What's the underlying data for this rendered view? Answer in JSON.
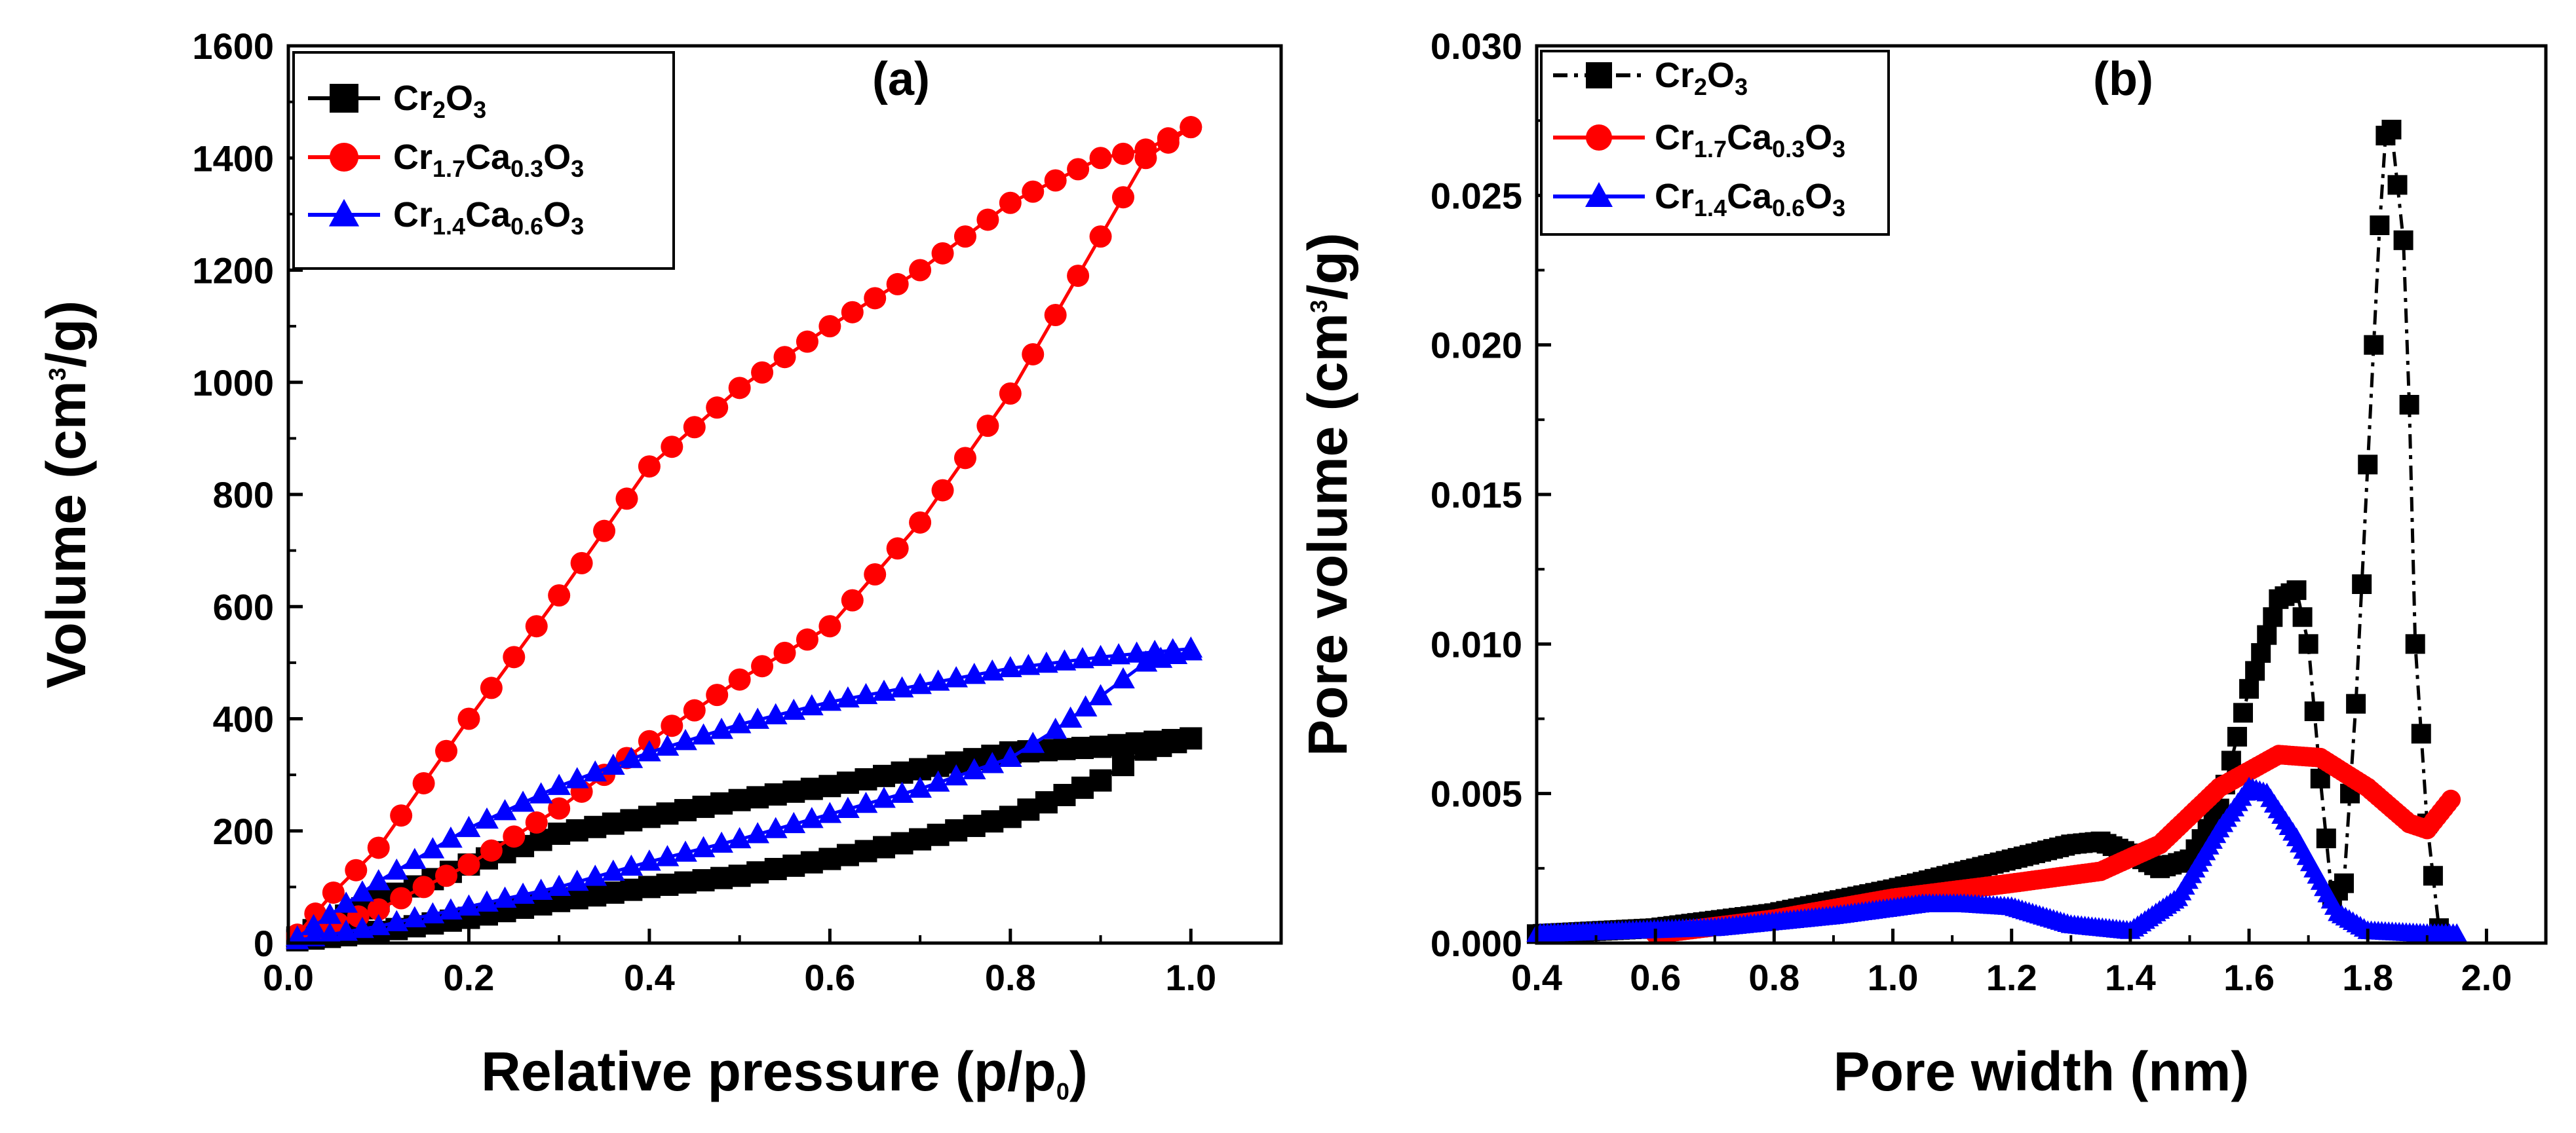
{
  "figure": {
    "panels": [
      "a",
      "b"
    ]
  },
  "chart_data": [
    {
      "type": "line",
      "panel_label": "(a)",
      "title": "",
      "xlabel": {
        "main": "Relative pressure (p/p",
        "sub": "0",
        "end": ")"
      },
      "ylabel": {
        "main": "Volume (cm",
        "sup": "3",
        "end": "/g)"
      },
      "xlim": [
        0.0,
        1.1
      ],
      "ylim": [
        0,
        1600
      ],
      "xticks": [
        "0.0",
        "0.2",
        "0.4",
        "0.6",
        "0.8",
        "1.0"
      ],
      "xtick_values": [
        0.0,
        0.2,
        0.4,
        0.6,
        0.8,
        1.0
      ],
      "yticks": [
        "0",
        "200",
        "400",
        "600",
        "800",
        "1000",
        "1200",
        "1400",
        "1600"
      ],
      "ytick_values": [
        0,
        200,
        400,
        600,
        800,
        1000,
        1200,
        1400,
        1600
      ],
      "grid": false,
      "legend_position": "top-left",
      "series": [
        {
          "name": "Cr2O3",
          "legend": [
            {
              "t": "Cr"
            },
            {
              "t": "2",
              "s": "sub"
            },
            {
              "t": "O"
            },
            {
              "t": "3",
              "s": "sub"
            }
          ],
          "color": "#000000",
          "marker": "square",
          "line_style": "solid",
          "marker_step": 0.02,
          "adsorption": [
            [
              0.01,
              5
            ],
            [
              0.1,
              20
            ],
            [
              0.2,
              45
            ],
            [
              0.3,
              75
            ],
            [
              0.4,
              100
            ],
            [
              0.5,
              120
            ],
            [
              0.6,
              150
            ],
            [
              0.7,
              185
            ],
            [
              0.8,
              225
            ],
            [
              0.9,
              290
            ],
            [
              0.95,
              345
            ],
            [
              1.0,
              365
            ]
          ],
          "desorption": [
            [
              1.0,
              365
            ],
            [
              0.9,
              350
            ],
            [
              0.8,
              340
            ],
            [
              0.7,
              310
            ],
            [
              0.6,
              280
            ],
            [
              0.5,
              255
            ],
            [
              0.4,
              225
            ],
            [
              0.3,
              195
            ],
            [
              0.2,
              140
            ],
            [
              0.1,
              75
            ],
            [
              0.01,
              10
            ]
          ]
        },
        {
          "name": "Cr1.7Ca0.3O3",
          "legend": [
            {
              "t": "Cr"
            },
            {
              "t": "1.7",
              "s": "sub"
            },
            {
              "t": "Ca"
            },
            {
              "t": "0.3",
              "s": "sub"
            },
            {
              "t": "O"
            },
            {
              "t": "3",
              "s": "sub"
            }
          ],
          "color": "#ff0000",
          "marker": "circle",
          "line_style": "solid",
          "marker_step": 0.025,
          "adsorption": [
            [
              0.01,
              10
            ],
            [
              0.1,
              60
            ],
            [
              0.2,
              140
            ],
            [
              0.3,
              240
            ],
            [
              0.4,
              360
            ],
            [
              0.5,
              470
            ],
            [
              0.6,
              565
            ],
            [
              0.7,
              750
            ],
            [
              0.8,
              980
            ],
            [
              0.85,
              1120
            ],
            [
              0.9,
              1260
            ],
            [
              0.95,
              1400
            ],
            [
              1.0,
              1455
            ]
          ],
          "desorption": [
            [
              1.0,
              1455
            ],
            [
              0.95,
              1415
            ],
            [
              0.9,
              1400
            ],
            [
              0.8,
              1320
            ],
            [
              0.7,
              1200
            ],
            [
              0.6,
              1100
            ],
            [
              0.5,
              990
            ],
            [
              0.4,
              850
            ],
            [
              0.3,
              620
            ],
            [
              0.2,
              400
            ],
            [
              0.1,
              170
            ],
            [
              0.05,
              90
            ],
            [
              0.01,
              15
            ]
          ]
        },
        {
          "name": "Cr1.4Ca0.6O3",
          "legend": [
            {
              "t": "Cr"
            },
            {
              "t": "1.4",
              "s": "sub"
            },
            {
              "t": "Ca"
            },
            {
              "t": "0.6",
              "s": "sub"
            },
            {
              "t": "O"
            },
            {
              "t": "3",
              "s": "sub"
            }
          ],
          "color": "#0000ff",
          "marker": "triangle",
          "line_style": "solid",
          "marker_step": 0.02,
          "adsorption": [
            [
              0.01,
              5
            ],
            [
              0.1,
              30
            ],
            [
              0.2,
              65
            ],
            [
              0.3,
              100
            ],
            [
              0.4,
              145
            ],
            [
              0.5,
              185
            ],
            [
              0.6,
              230
            ],
            [
              0.7,
              275
            ],
            [
              0.8,
              330
            ],
            [
              0.85,
              380
            ],
            [
              0.9,
              440
            ],
            [
              0.95,
              500
            ],
            [
              1.0,
              520
            ]
          ],
          "desorption": [
            [
              1.0,
              525
            ],
            [
              0.9,
              510
            ],
            [
              0.8,
              490
            ],
            [
              0.7,
              460
            ],
            [
              0.6,
              430
            ],
            [
              0.5,
              390
            ],
            [
              0.4,
              340
            ],
            [
              0.3,
              280
            ],
            [
              0.2,
              205
            ],
            [
              0.1,
              110
            ],
            [
              0.01,
              10
            ]
          ]
        }
      ]
    },
    {
      "type": "line",
      "panel_label": "(b)",
      "title": "",
      "xlabel": {
        "main": "Pore width (nm)"
      },
      "ylabel": {
        "main": "Pore volume (cm",
        "sup": "3",
        "end": "/g)"
      },
      "xlim": [
        0.4,
        2.1
      ],
      "ylim": [
        0.0,
        0.03
      ],
      "xticks": [
        "0.4",
        "0.6",
        "0.8",
        "1.0",
        "1.2",
        "1.4",
        "1.6",
        "1.8",
        "2.0"
      ],
      "xtick_values": [
        0.4,
        0.6,
        0.8,
        1.0,
        1.2,
        1.4,
        1.6,
        1.8,
        2.0
      ],
      "yticks": [
        "0.000",
        "0.005",
        "0.010",
        "0.015",
        "0.020",
        "0.025",
        "0.030"
      ],
      "ytick_values": [
        0.0,
        0.005,
        0.01,
        0.015,
        0.02,
        0.025,
        0.03
      ],
      "grid": false,
      "legend_position": "top-left",
      "series": [
        {
          "name": "Cr2O3",
          "legend": [
            {
              "t": "Cr"
            },
            {
              "t": "2",
              "s": "sub"
            },
            {
              "t": "O"
            },
            {
              "t": "3",
              "s": "sub"
            }
          ],
          "color": "#000000",
          "marker": "square",
          "line_style": "dashdot",
          "marker_step": 0.01,
          "points": [
            [
              0.4,
              0.0003
            ],
            [
              0.6,
              0.0005
            ],
            [
              0.8,
              0.001
            ],
            [
              1.0,
              0.0018
            ],
            [
              1.2,
              0.0028
            ],
            [
              1.3,
              0.0033
            ],
            [
              1.35,
              0.0034
            ],
            [
              1.4,
              0.003
            ],
            [
              1.45,
              0.0025
            ],
            [
              1.5,
              0.0028
            ],
            [
              1.55,
              0.0045
            ],
            [
              1.6,
              0.0085
            ],
            [
              1.65,
              0.0115
            ],
            [
              1.68,
              0.0118
            ],
            [
              1.7,
              0.01
            ],
            [
              1.72,
              0.0055
            ],
            [
              1.74,
              0.0015
            ],
            [
              1.76,
              0.002
            ],
            [
              1.78,
              0.008
            ],
            [
              1.8,
              0.016
            ],
            [
              1.82,
              0.024
            ],
            [
              1.83,
              0.027
            ],
            [
              1.84,
              0.0272
            ],
            [
              1.86,
              0.0235
            ],
            [
              1.87,
              0.018
            ],
            [
              1.88,
              0.01
            ],
            [
              1.9,
              0.004
            ],
            [
              1.92,
              0.0005
            ]
          ]
        },
        {
          "name": "Cr1.7Ca0.3O3",
          "legend": [
            {
              "t": "Cr"
            },
            {
              "t": "1.7",
              "s": "sub"
            },
            {
              "t": "Ca"
            },
            {
              "t": "0.3",
              "s": "sub"
            },
            {
              "t": "O"
            },
            {
              "t": "3",
              "s": "sub"
            }
          ],
          "color": "#ff0000",
          "marker": "circle",
          "line_style": "solid",
          "marker_step": 0.006,
          "points": [
            [
              0.6,
              0.0003
            ],
            [
              0.8,
              0.0008
            ],
            [
              1.0,
              0.0015
            ],
            [
              1.2,
              0.002
            ],
            [
              1.35,
              0.0024
            ],
            [
              1.45,
              0.0033
            ],
            [
              1.55,
              0.0052
            ],
            [
              1.65,
              0.0063
            ],
            [
              1.72,
              0.0062
            ],
            [
              1.8,
              0.0052
            ],
            [
              1.87,
              0.004
            ],
            [
              1.9,
              0.0038
            ],
            [
              1.94,
              0.0048
            ]
          ]
        },
        {
          "name": "Cr1.4Ca0.6O3",
          "legend": [
            {
              "t": "Cr"
            },
            {
              "t": "1.4",
              "s": "sub"
            },
            {
              "t": "Ca"
            },
            {
              "t": "0.6",
              "s": "sub"
            },
            {
              "t": "O"
            },
            {
              "t": "3",
              "s": "sub"
            }
          ],
          "color": "#0000ff",
          "marker": "triangle",
          "line_style": "solid",
          "marker_step": 0.006,
          "points": [
            [
              0.4,
              0.0003
            ],
            [
              0.55,
              0.0004
            ],
            [
              0.7,
              0.0005
            ],
            [
              0.9,
              0.0009
            ],
            [
              1.05,
              0.0013
            ],
            [
              1.12,
              0.0013
            ],
            [
              1.2,
              0.0012
            ],
            [
              1.3,
              0.0006
            ],
            [
              1.4,
              0.0004
            ],
            [
              1.48,
              0.0015
            ],
            [
              1.55,
              0.0038
            ],
            [
              1.6,
              0.0052
            ],
            [
              1.63,
              0.005
            ],
            [
              1.68,
              0.0035
            ],
            [
              1.75,
              0.001
            ],
            [
              1.8,
              0.0004
            ],
            [
              1.9,
              0.0003
            ],
            [
              1.95,
              0.0003
            ]
          ]
        }
      ]
    }
  ]
}
